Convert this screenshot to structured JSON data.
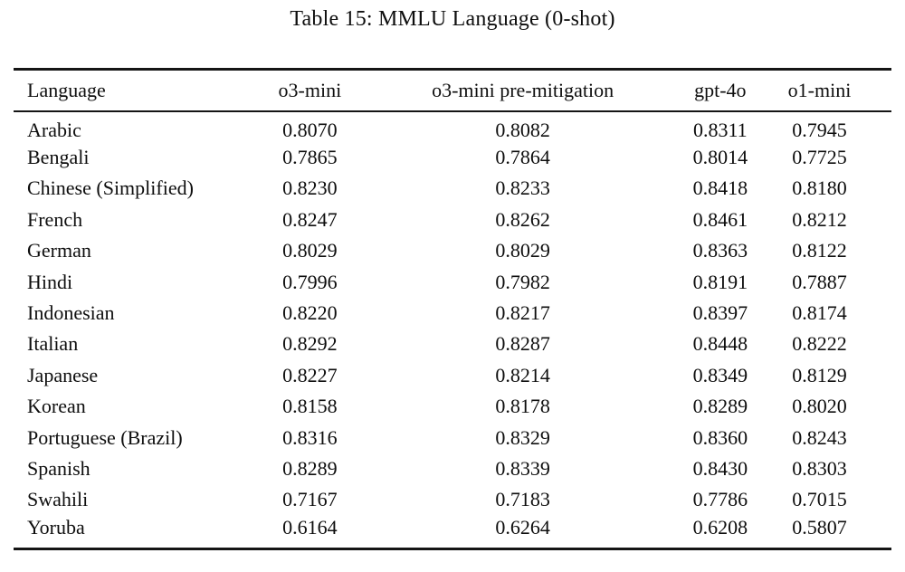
{
  "title": "Table 15: MMLU Language (0-shot)",
  "colors": {
    "background": "#ffffff",
    "text": "#0e0e0e",
    "rule": "#151515"
  },
  "table": {
    "columns": [
      "Language",
      "o3-mini",
      "o3-mini pre-mitigation",
      "gpt-4o",
      "o1-mini"
    ],
    "rows": [
      [
        "Arabic",
        "0.8070",
        "0.8082",
        "0.8311",
        "0.7945"
      ],
      [
        "Bengali",
        "0.7865",
        "0.7864",
        "0.8014",
        "0.7725"
      ],
      [
        "Chinese (Simplified)",
        "0.8230",
        "0.8233",
        "0.8418",
        "0.8180"
      ],
      [
        "French",
        "0.8247",
        "0.8262",
        "0.8461",
        "0.8212"
      ],
      [
        "German",
        "0.8029",
        "0.8029",
        "0.8363",
        "0.8122"
      ],
      [
        "Hindi",
        "0.7996",
        "0.7982",
        "0.8191",
        "0.7887"
      ],
      [
        "Indonesian",
        "0.8220",
        "0.8217",
        "0.8397",
        "0.8174"
      ],
      [
        "Italian",
        "0.8292",
        "0.8287",
        "0.8448",
        "0.8222"
      ],
      [
        "Japanese",
        "0.8227",
        "0.8214",
        "0.8349",
        "0.8129"
      ],
      [
        "Korean",
        "0.8158",
        "0.8178",
        "0.8289",
        "0.8020"
      ],
      [
        "Portuguese (Brazil)",
        "0.8316",
        "0.8329",
        "0.8360",
        "0.8243"
      ],
      [
        "Spanish",
        "0.8289",
        "0.8339",
        "0.8430",
        "0.8303"
      ],
      [
        "Swahili",
        "0.7167",
        "0.7183",
        "0.7786",
        "0.7015"
      ],
      [
        "Yoruba",
        "0.6164",
        "0.6264",
        "0.6208",
        "0.5807"
      ]
    ]
  }
}
